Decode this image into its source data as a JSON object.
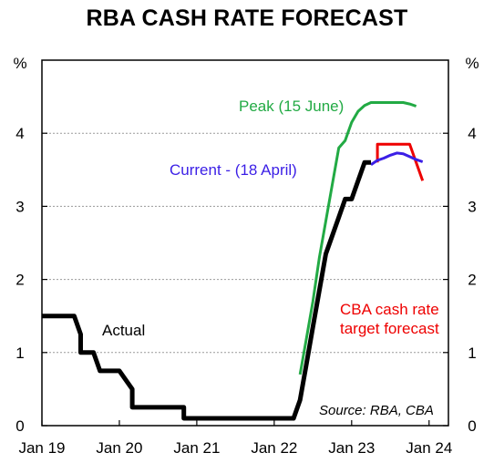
{
  "chart_data": {
    "type": "line",
    "title": "RBA CASH RATE FORECAST",
    "y_unit_left": "%",
    "y_unit_right": "%",
    "ylim": [
      0,
      5
    ],
    "y_ticks": [
      0,
      1,
      2,
      3,
      4
    ],
    "x_ticks": [
      "Jan 19",
      "Jan 20",
      "Jan 21",
      "Jan 22",
      "Jan 23",
      "Jan 24"
    ],
    "grid": true,
    "source": "Source: RBA, CBA",
    "series": [
      {
        "name": "Actual",
        "color": "#000000",
        "points": [
          [
            "Jan 19",
            1.5
          ],
          [
            "Jun 19",
            1.5
          ],
          [
            "Jul 19",
            1.25
          ],
          [
            "Jul 19",
            1.0
          ],
          [
            "Sep 19",
            1.0
          ],
          [
            "Oct 19",
            0.75
          ],
          [
            "Jan 20",
            0.75
          ],
          [
            "Mar 20",
            0.5
          ],
          [
            "Mar 20",
            0.25
          ],
          [
            "Nov 20",
            0.25
          ],
          [
            "Nov 20",
            0.1
          ],
          [
            "Apr 22",
            0.1
          ],
          [
            "May 22",
            0.35
          ],
          [
            "Jun 22",
            0.85
          ],
          [
            "Jul 22",
            1.35
          ],
          [
            "Aug 22",
            1.85
          ],
          [
            "Sep 22",
            2.35
          ],
          [
            "Oct 22",
            2.6
          ],
          [
            "Nov 22",
            2.85
          ],
          [
            "Dec 22",
            3.1
          ],
          [
            "Jan 23",
            3.1
          ],
          [
            "Feb 23",
            3.35
          ],
          [
            "Mar 23",
            3.6
          ],
          [
            "Apr 23",
            3.6
          ]
        ]
      },
      {
        "name": "Peak (15 June)",
        "color": "#22aa44",
        "points": [
          [
            "May 22",
            0.7
          ],
          [
            "Jun 22",
            1.2
          ],
          [
            "Jul 22",
            1.7
          ],
          [
            "Aug 22",
            2.3
          ],
          [
            "Sep 22",
            2.8
          ],
          [
            "Oct 22",
            3.3
          ],
          [
            "Nov 22",
            3.8
          ],
          [
            "Dec 22",
            3.9
          ],
          [
            "Jan 23",
            4.15
          ],
          [
            "Feb 23",
            4.3
          ],
          [
            "Mar 23",
            4.38
          ],
          [
            "Apr 23",
            4.42
          ],
          [
            "Jun 23",
            4.42
          ],
          [
            "Sep 23",
            4.42
          ],
          [
            "Oct 23",
            4.4
          ],
          [
            "Nov 23",
            4.37
          ]
        ]
      },
      {
        "name": "Current - (18 April)",
        "color": "#3b1fe6",
        "points": [
          [
            "Apr 23",
            3.57
          ],
          [
            "May 23",
            3.63
          ],
          [
            "Jun 23",
            3.66
          ],
          [
            "Jul 23",
            3.7
          ],
          [
            "Aug 23",
            3.73
          ],
          [
            "Sep 23",
            3.72
          ],
          [
            "Oct 23",
            3.68
          ],
          [
            "Nov 23",
            3.64
          ],
          [
            "Dec 23",
            3.61
          ]
        ]
      },
      {
        "name": "CBA cash rate target forecast",
        "color": "#ee0000",
        "points": [
          [
            "May 23",
            3.6
          ],
          [
            "May 23",
            3.85
          ],
          [
            "Oct 23",
            3.85
          ],
          [
            "Nov 23",
            3.6
          ],
          [
            "Dec 23",
            3.35
          ]
        ]
      }
    ],
    "annotations": {
      "peak": "Peak (15 June)",
      "current": "Current - (18 April)",
      "actual": "Actual",
      "cba_line1": "CBA cash rate",
      "cba_line2": "target forecast"
    }
  }
}
